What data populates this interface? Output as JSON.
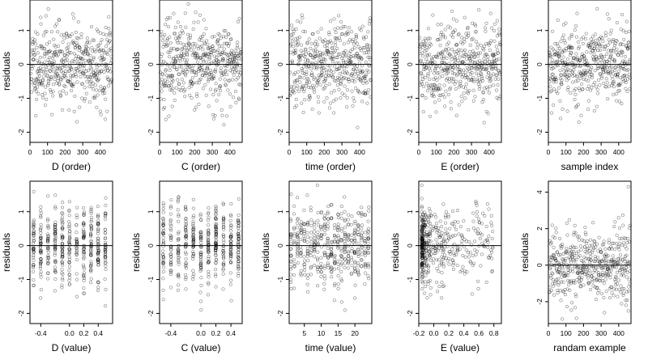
{
  "chart_data": [
    {
      "type": "scatter",
      "xlabel": "D (order)",
      "ylabel": "residuals",
      "xlim": [
        0,
        470
      ],
      "ylim": [
        -2.3,
        1.9
      ],
      "xticks": [
        "0",
        "100",
        "200",
        "300",
        "400"
      ],
      "xtick_values": [
        0,
        100,
        200,
        300,
        400
      ],
      "yticks": [
        "-2",
        "-1",
        "0",
        "1"
      ],
      "ytick_values": [
        -2,
        -1,
        0,
        1
      ],
      "hline": 0,
      "points_n": 470,
      "x_dist": "index",
      "band": 0.6,
      "seed": 11
    },
    {
      "type": "scatter",
      "xlabel": "C (order)",
      "ylabel": "residuals",
      "xlim": [
        0,
        470
      ],
      "ylim": [
        -2.3,
        1.9
      ],
      "xticks": [
        "0",
        "100",
        "200",
        "300",
        "400"
      ],
      "xtick_values": [
        0,
        100,
        200,
        300,
        400
      ],
      "yticks": [
        "-2",
        "-1",
        "0",
        "1"
      ],
      "ytick_values": [
        -2,
        -1,
        0,
        1
      ],
      "hline": 0,
      "points_n": 470,
      "x_dist": "index",
      "band": 0.6,
      "seed": 23
    },
    {
      "type": "scatter",
      "xlabel": "time (order)",
      "ylabel": "residuals",
      "xlim": [
        0,
        470
      ],
      "ylim": [
        -2.3,
        1.9
      ],
      "xticks": [
        "0",
        "100",
        "200",
        "300",
        "400"
      ],
      "xtick_values": [
        0,
        100,
        200,
        300,
        400
      ],
      "yticks": [
        "-2",
        "-1",
        "0",
        "1"
      ],
      "ytick_values": [
        -2,
        -1,
        0,
        1
      ],
      "hline": 0,
      "points_n": 470,
      "x_dist": "index",
      "band": 0.6,
      "seed": 37
    },
    {
      "type": "scatter",
      "xlabel": "E (order)",
      "ylabel": "residuals",
      "xlim": [
        0,
        470
      ],
      "ylim": [
        -2.3,
        1.9
      ],
      "xticks": [
        "0",
        "100",
        "200",
        "300",
        "400"
      ],
      "xtick_values": [
        0,
        100,
        200,
        300,
        400
      ],
      "yticks": [
        "-2",
        "-1",
        "0",
        "1"
      ],
      "ytick_values": [
        -2,
        -1,
        0,
        1
      ],
      "hline": 0,
      "points_n": 470,
      "x_dist": "index",
      "band": 0.6,
      "seed": 41
    },
    {
      "type": "scatter",
      "xlabel": "sample index",
      "ylabel": "residuals",
      "xlim": [
        0,
        470
      ],
      "ylim": [
        -2.3,
        1.9
      ],
      "xticks": [
        "0",
        "100",
        "200",
        "300",
        "400"
      ],
      "xtick_values": [
        0,
        100,
        200,
        300,
        400
      ],
      "yticks": [
        "-2",
        "-1",
        "0",
        "1"
      ],
      "ytick_values": [
        -2,
        -1,
        0,
        1
      ],
      "hline": 0,
      "points_n": 470,
      "x_dist": "index",
      "band": 0.6,
      "seed": 53
    },
    {
      "type": "scatter",
      "xlabel": "D (value)",
      "ylabel": "residuals",
      "xlim": [
        -0.55,
        0.6
      ],
      "ylim": [
        -2.3,
        1.9
      ],
      "xticks": [
        "-0.4",
        "0.0",
        "0.2",
        "0.4"
      ],
      "xtick_values": [
        -0.4,
        0,
        0.2,
        0.4
      ],
      "yticks": [
        "-2",
        "-1",
        "0",
        "1"
      ],
      "ytick_values": [
        -2,
        -1,
        0,
        1
      ],
      "hline": 0,
      "points_n": 470,
      "x_dist": "columns",
      "x_levels": [
        -0.5,
        -0.4,
        -0.3,
        -0.2,
        -0.1,
        0,
        0.1,
        0.2,
        0.3,
        0.4,
        0.5
      ],
      "band": 0.6,
      "seed": 61
    },
    {
      "type": "scatter",
      "xlabel": "C (value)",
      "ylabel": "residuals",
      "xlim": [
        -0.55,
        0.55
      ],
      "ylim": [
        -2.3,
        1.9
      ],
      "xticks": [
        "-0.4",
        "0.0",
        "0.2",
        "0.4"
      ],
      "xtick_values": [
        -0.4,
        0,
        0.2,
        0.4
      ],
      "yticks": [
        "-2",
        "-1",
        "0",
        "1"
      ],
      "ytick_values": [
        -2,
        -1,
        0,
        1
      ],
      "hline": 0,
      "points_n": 470,
      "x_dist": "columns",
      "x_levels": [
        -0.5,
        -0.4,
        -0.3,
        -0.2,
        -0.1,
        0,
        0.1,
        0.2,
        0.3,
        0.4,
        0.5
      ],
      "band": 0.6,
      "seed": 71
    },
    {
      "type": "scatter",
      "xlabel": "time (value)",
      "ylabel": "residuals",
      "xlim": [
        0.5,
        25
      ],
      "ylim": [
        -2.3,
        1.9
      ],
      "xticks": [
        "5",
        "10",
        "15",
        "20"
      ],
      "xtick_values": [
        5,
        10,
        15,
        20
      ],
      "yticks": [
        "-2",
        "-1",
        "0",
        "1"
      ],
      "ytick_values": [
        -2,
        -1,
        0,
        1
      ],
      "hline": 0,
      "points_n": 470,
      "x_dist": "columns",
      "x_levels": [
        1,
        2,
        3,
        4,
        5,
        6,
        7,
        8,
        9,
        10,
        11,
        12,
        13,
        14,
        15,
        16,
        17,
        18,
        19,
        20,
        21,
        22,
        23,
        24
      ],
      "band": 0.6,
      "seed": 83
    },
    {
      "type": "scatter",
      "xlabel": "E (value)",
      "ylabel": "residuals",
      "xlim": [
        -0.2,
        0.9
      ],
      "ylim": [
        -2.3,
        1.9
      ],
      "xticks": [
        "-0.2",
        "0.0",
        "0.2",
        "0.4",
        "0.6",
        "0.8"
      ],
      "xtick_values": [
        -0.2,
        0,
        0.2,
        0.4,
        0.6,
        0.8
      ],
      "yticks": [
        "-2",
        "-1",
        "0",
        "1"
      ],
      "ytick_values": [
        -2,
        -1,
        0,
        1
      ],
      "hline": 0,
      "points_n": 470,
      "x_dist": "skewed",
      "band": 0.6,
      "seed": 97
    },
    {
      "type": "scatter",
      "xlabel": "randam example",
      "ylabel": "residuals",
      "xlim": [
        0,
        470
      ],
      "ylim": [
        -3.2,
        4.6
      ],
      "xticks": [
        "0",
        "100",
        "200",
        "300",
        "400"
      ],
      "xtick_values": [
        0,
        100,
        200,
        300,
        400
      ],
      "yticks": [
        "-2",
        "0",
        "2",
        "4"
      ],
      "ytick_values": [
        -2,
        0,
        2,
        4
      ],
      "hline": 0,
      "points_n": 470,
      "x_dist": "index",
      "band": 1.0,
      "outlier": [
        455,
        4.3
      ],
      "seed": 109
    }
  ]
}
